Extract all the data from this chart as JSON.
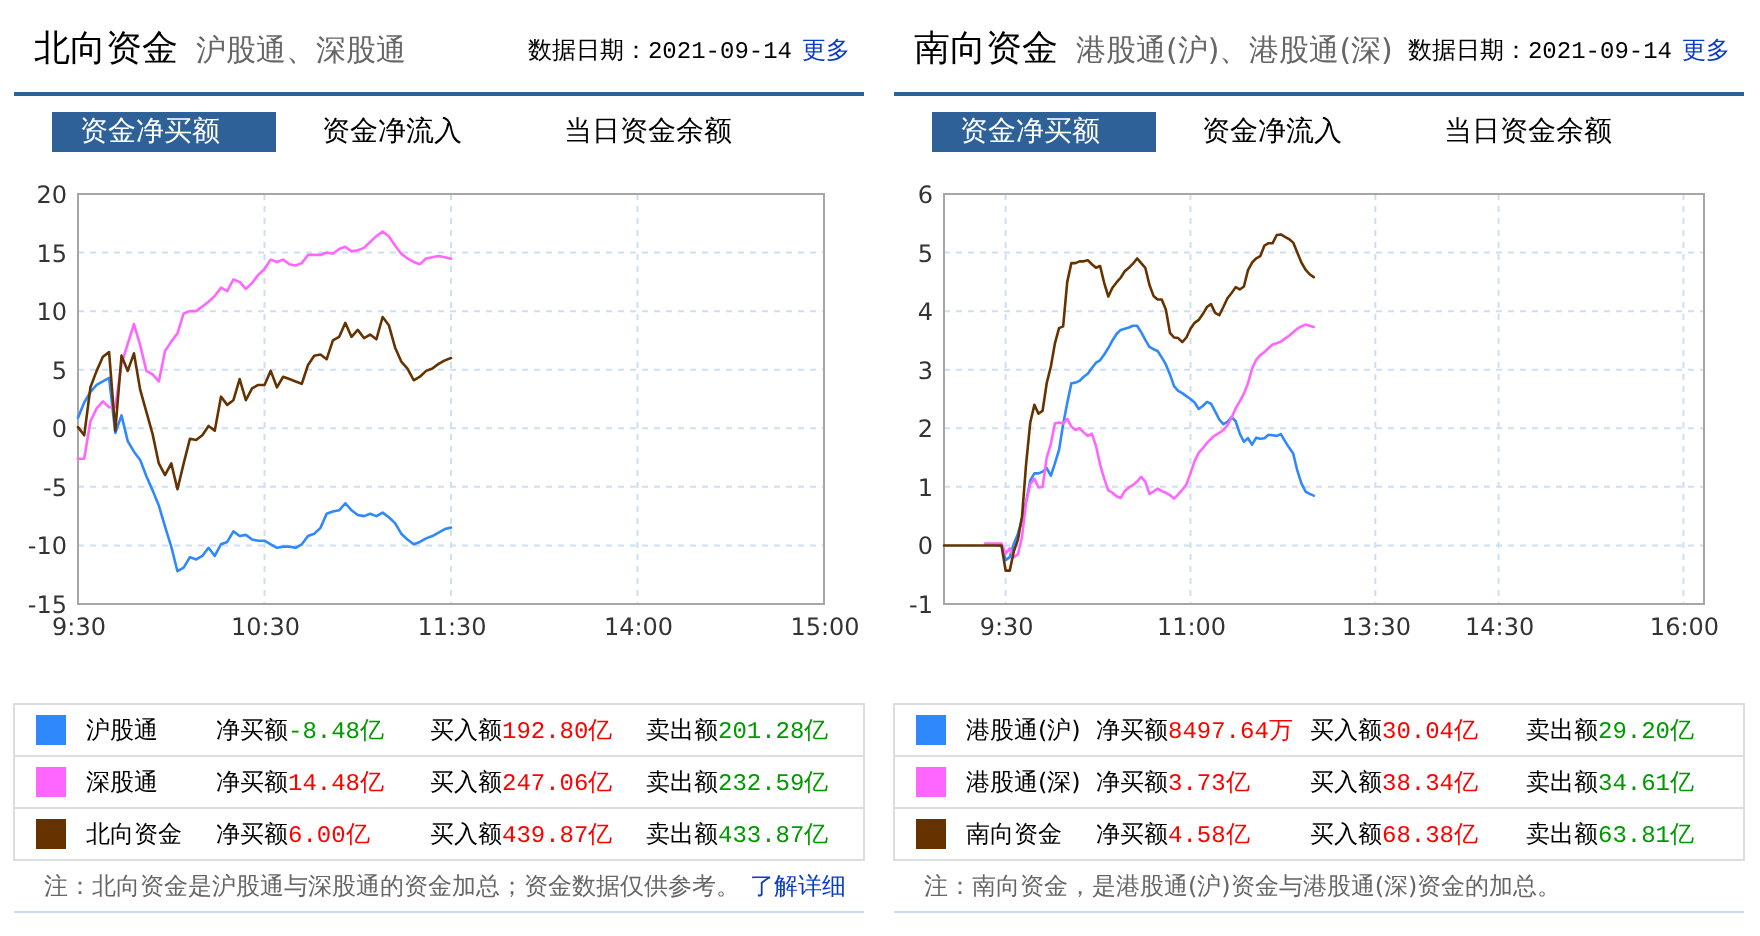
{
  "chart_data": [
    {
      "type": "line",
      "title": "北向资金",
      "subtitle": "沪股通、深股通",
      "categories": [
        "9:30",
        null,
        null,
        null,
        null,
        null,
        null,
        null,
        null,
        null,
        null,
        null,
        null,
        null,
        null,
        null,
        null,
        null,
        null,
        null,
        null,
        null,
        null,
        null,
        null,
        null,
        null,
        null,
        null,
        null,
        "10:30",
        null,
        null,
        null,
        null,
        null,
        null,
        null,
        null,
        null,
        null,
        null,
        null,
        null,
        null,
        null,
        null,
        null,
        null,
        null,
        null,
        null,
        null,
        null,
        null,
        null,
        null,
        null,
        null,
        null,
        "11:30",
        null,
        null,
        null,
        null,
        null,
        null,
        null,
        null,
        null,
        null,
        null,
        null,
        null,
        null,
        null,
        null,
        null,
        null,
        null,
        null,
        null,
        null,
        null,
        null,
        null,
        null,
        null,
        null,
        null,
        "14:00",
        null,
        null,
        null,
        null,
        null,
        null,
        null,
        null,
        null,
        null,
        null,
        null,
        null,
        null,
        null,
        null,
        null,
        null,
        null,
        null,
        null,
        null,
        null,
        null,
        null,
        null,
        null,
        null,
        null,
        "15:00"
      ],
      "ylim": [
        -15,
        20
      ],
      "yticks": [
        -15,
        -10,
        -5,
        0,
        5,
        10,
        15,
        20
      ],
      "grid": true,
      "legend": "bottom",
      "series": [
        {
          "name": "沪股通",
          "color": "#2f89fc",
          "values": [
            0.9,
            2.2,
            3.1,
            3.7,
            4.0,
            4.3,
            -0.4,
            1.1,
            -1.1,
            -2.0,
            -2.7,
            -4.1,
            -5.3,
            -6.6,
            -8.4,
            -10.1,
            -12.2,
            -11.9,
            -11.0,
            -11.2,
            -10.9,
            -10.2,
            -10.9,
            -9.9,
            -9.7,
            -8.8,
            -9.2,
            -9.1,
            -9.5,
            -9.6,
            -9.6,
            -9.9,
            -10.2,
            -10.1,
            -10.1,
            -10.2,
            -9.9,
            -9.2,
            -9.0,
            -8.5,
            -7.3,
            -7.1,
            -7.0,
            -6.4,
            -7.0,
            -7.4,
            -7.5,
            -7.3,
            -7.5,
            -7.2,
            -7.6,
            -8.1,
            -9.0,
            -9.5,
            -9.9,
            -9.7,
            -9.4,
            -9.2,
            -8.9,
            -8.6,
            -8.48,
            null,
            null,
            null,
            null,
            null,
            null,
            null,
            null,
            null,
            null,
            null,
            null,
            null,
            null,
            null,
            null,
            null,
            null,
            null,
            null,
            null,
            null,
            null,
            null,
            null,
            null,
            null,
            null,
            null,
            null,
            null,
            null,
            null,
            null,
            null,
            null,
            null,
            null,
            null,
            null,
            null,
            null,
            null,
            null,
            null,
            null,
            null,
            null,
            null,
            null,
            null,
            null,
            null,
            null,
            null,
            null,
            null,
            null,
            null,
            null
          ]
        },
        {
          "name": "深股通",
          "color": "#ff66ff",
          "values": [
            -2.6,
            -2.6,
            0.6,
            1.7,
            2.3,
            1.8,
            1.8,
            5.5,
            7.2,
            8.9,
            7.1,
            4.9,
            4.6,
            4.0,
            6.6,
            7.4,
            8.1,
            9.8,
            10.0,
            10.0,
            10.4,
            10.8,
            11.3,
            12.0,
            11.7,
            12.7,
            12.5,
            11.9,
            12.4,
            13.1,
            13.6,
            14.4,
            14.2,
            14.4,
            14.0,
            13.9,
            14.1,
            14.8,
            14.8,
            14.8,
            15.0,
            14.9,
            15.3,
            15.5,
            15.1,
            15.2,
            15.4,
            15.9,
            16.4,
            16.8,
            16.4,
            15.6,
            14.9,
            14.5,
            14.2,
            14.0,
            14.5,
            14.6,
            14.7,
            14.6,
            14.48,
            null,
            null,
            null,
            null,
            null,
            null,
            null,
            null,
            null,
            null,
            null,
            null,
            null,
            null,
            null,
            null,
            null,
            null,
            null,
            null,
            null,
            null,
            null,
            null,
            null,
            null,
            null,
            null,
            null,
            null,
            null,
            null,
            null,
            null,
            null,
            null,
            null,
            null,
            null,
            null,
            null,
            null,
            null,
            null,
            null,
            null,
            null,
            null,
            null,
            null,
            null,
            null,
            null,
            null,
            null,
            null,
            null,
            null,
            null,
            null
          ]
        },
        {
          "name": "北向资金",
          "color": "#663300",
          "values": [
            0.1,
            -0.6,
            3.5,
            4.9,
            6.1,
            6.5,
            -0.2,
            6.2,
            4.9,
            6.4,
            3.3,
            1.4,
            -0.5,
            -3.0,
            -4.0,
            -3.0,
            -5.2,
            -3.0,
            -0.9,
            -1.0,
            -0.6,
            0.2,
            -0.2,
            2.7,
            2.0,
            2.4,
            4.2,
            2.4,
            3.4,
            3.7,
            3.7,
            4.9,
            3.5,
            4.4,
            4.2,
            4.0,
            3.8,
            5.4,
            6.2,
            6.3,
            5.9,
            7.5,
            7.8,
            9.0,
            7.8,
            8.4,
            7.7,
            8.0,
            7.6,
            9.5,
            8.8,
            6.9,
            5.7,
            5.1,
            4.1,
            4.4,
            4.9,
            5.1,
            5.5,
            5.8,
            6.0,
            null,
            null,
            null,
            null,
            null,
            null,
            null,
            null,
            null,
            null,
            null,
            null,
            null,
            null,
            null,
            null,
            null,
            null,
            null,
            null,
            null,
            null,
            null,
            null,
            null,
            null,
            null,
            null,
            null,
            null,
            null,
            null,
            null,
            null,
            null,
            null,
            null,
            null,
            null,
            null,
            null,
            null,
            null,
            null,
            null,
            null,
            null,
            null,
            null,
            null,
            null,
            null,
            null,
            null,
            null,
            null,
            null,
            null,
            null,
            null
          ]
        }
      ],
      "annotations": [
        "数据日期：2021-09-14",
        "更多",
        "资金净买额",
        "资金净流入",
        "当日资金余额",
        "净买额",
        "-8.48亿",
        "买入额",
        "192.80亿",
        "卖出额",
        "201.28亿",
        "净买额",
        "14.48亿",
        "买入额",
        "247.06亿",
        "卖出额",
        "232.59亿",
        "净买额",
        "6.00亿",
        "买入额",
        "439.87亿",
        "卖出额",
        "433.87亿",
        "注：北向资金是沪股通与深股通的资金加总；资金数据仅供参考。",
        "了解详细"
      ]
    },
    {
      "type": "line",
      "title": "南向资金",
      "subtitle": "港股通(沪)、港股通(深)",
      "categories": [
        null,
        null,
        null,
        null,
        null,
        null,
        null,
        null,
        null,
        null,
        null,
        null,
        null,
        null,
        null,
        "9:30",
        null,
        null,
        null,
        null,
        null,
        null,
        null,
        null,
        null,
        null,
        null,
        null,
        null,
        null,
        null,
        null,
        null,
        null,
        null,
        null,
        null,
        null,
        null,
        null,
        null,
        null,
        null,
        null,
        null,
        null,
        null,
        null,
        null,
        null,
        null,
        null,
        null,
        null,
        null,
        null,
        null,
        null,
        null,
        null,
        "11:00",
        null,
        null,
        null,
        null,
        null,
        null,
        null,
        null,
        null,
        null,
        null,
        null,
        null,
        null,
        null,
        null,
        null,
        null,
        null,
        null,
        null,
        null,
        null,
        null,
        null,
        null,
        null,
        null,
        null,
        null,
        null,
        null,
        null,
        null,
        null,
        null,
        null,
        null,
        null,
        null,
        null,
        null,
        null,
        null,
        "13:30",
        null,
        null,
        null,
        null,
        null,
        null,
        null,
        null,
        null,
        null,
        null,
        null,
        null,
        null,
        null,
        null,
        null,
        null,
        null,
        null,
        null,
        null,
        null,
        null,
        null,
        null,
        null,
        null,
        null,
        "14:30",
        null,
        null,
        null,
        null,
        null,
        null,
        null,
        null,
        null,
        null,
        null,
        null,
        null,
        null,
        null,
        null,
        null,
        null,
        null,
        null,
        null,
        null,
        null,
        null,
        null,
        null,
        null,
        null,
        null,
        null,
        null,
        null,
        null,
        null,
        null,
        null,
        null,
        null,
        null,
        null,
        null,
        null,
        null,
        null,
        "16:00",
        null,
        null,
        null,
        null,
        null
      ],
      "ylim": [
        -1,
        6
      ],
      "yticks": [
        -1,
        0,
        1,
        2,
        3,
        4,
        5,
        6
      ],
      "grid": true,
      "legend": "bottom",
      "series": [
        {
          "name": "港股通(沪)",
          "color": "#2f89fc",
          "values": [
            null,
            null,
            null,
            null,
            null,
            null,
            null,
            null,
            null,
            null,
            null,
            null,
            null,
            0,
            0,
            -0.25,
            -0.2,
            0.03,
            0.2,
            0.45,
            0.75,
            1.11,
            1.23,
            1.23,
            1.26,
            1.32,
            1.19,
            1.4,
            1.63,
            2.07,
            2.43,
            2.77,
            2.78,
            2.81,
            2.88,
            2.93,
            3.03,
            3.12,
            3.16,
            3.26,
            3.37,
            3.5,
            3.61,
            3.68,
            3.7,
            3.72,
            3.75,
            3.75,
            3.64,
            3.51,
            3.39,
            3.35,
            3.32,
            3.21,
            3.09,
            2.92,
            2.72,
            2.64,
            2.6,
            2.55,
            2.5,
            2.44,
            2.33,
            2.38,
            2.45,
            2.42,
            2.29,
            2.15,
            2.07,
            2.11,
            2.19,
            2.12,
            1.91,
            1.77,
            1.83,
            1.72,
            1.84,
            1.82,
            1.83,
            1.89,
            1.88,
            1.87,
            1.9,
            1.78,
            1.67,
            1.57,
            1.28,
            1.06,
            0.92,
            0.88,
            0.85,
            null,
            null,
            null,
            null,
            null,
            null,
            null,
            null,
            null,
            null,
            null,
            null,
            null,
            null,
            null,
            null,
            null,
            null,
            null,
            null,
            null,
            null,
            null,
            null,
            null,
            null,
            null,
            null,
            null,
            null,
            null,
            null,
            null,
            null,
            null,
            null,
            null,
            null,
            null,
            null,
            null,
            null,
            null,
            null,
            null,
            null,
            null,
            null,
            null,
            null,
            null,
            null,
            null,
            null,
            null,
            null,
            null,
            null,
            null,
            null,
            null,
            null,
            null,
            null,
            null,
            null,
            null,
            null,
            null,
            null,
            null,
            null,
            null,
            null,
            null,
            null,
            null,
            null,
            null,
            null,
            null,
            null,
            null,
            null,
            null,
            null,
            null,
            null,
            null,
            null,
            null,
            null,
            null,
            null,
            null
          ]
        },
        {
          "name": "港股通(深)",
          "color": "#ff66ff",
          "values": [
            null,
            null,
            null,
            null,
            null,
            null,
            null,
            null,
            null,
            null,
            0.03,
            0.03,
            0.03,
            0.03,
            0.03,
            -0.14,
            -0.05,
            -0.2,
            -0.15,
            0.15,
            0.75,
            1.05,
            1.14,
            0.99,
            1.0,
            1.5,
            1.73,
            2.08,
            2.1,
            2.08,
            2.16,
            2.03,
            1.97,
            2.0,
            1.93,
            1.87,
            1.91,
            1.7,
            1.38,
            1.14,
            0.94,
            0.9,
            0.84,
            0.81,
            0.93,
            0.99,
            1.03,
            1.09,
            1.17,
            1.09,
            0.88,
            0.92,
            0.97,
            0.93,
            0.9,
            0.86,
            0.8,
            0.87,
            0.95,
            1.04,
            1.23,
            1.44,
            1.58,
            1.66,
            1.75,
            1.82,
            1.88,
            1.92,
            1.97,
            2.05,
            2.18,
            2.34,
            2.46,
            2.59,
            2.77,
            3.02,
            3.17,
            3.25,
            3.3,
            3.37,
            3.43,
            3.45,
            3.48,
            3.53,
            3.58,
            3.64,
            3.7,
            3.74,
            3.77,
            3.75,
            3.73,
            null,
            null,
            null,
            null,
            null,
            null,
            null,
            null,
            null,
            null,
            null,
            null,
            null,
            null,
            null,
            null,
            null,
            null,
            null,
            null,
            null,
            null,
            null,
            null,
            null,
            null,
            null,
            null,
            null,
            null,
            null,
            null,
            null,
            null,
            null,
            null,
            null,
            null,
            null,
            null,
            null,
            null,
            null,
            null,
            null,
            null,
            null,
            null,
            null,
            null,
            null,
            null,
            null,
            null,
            null,
            null,
            null,
            null,
            null,
            null,
            null,
            null,
            null,
            null,
            null,
            null,
            null,
            null,
            null,
            null,
            null,
            null,
            null,
            null,
            null,
            null,
            null,
            null,
            null,
            null,
            null,
            null,
            null,
            null,
            null,
            null,
            null,
            null,
            null,
            null,
            null,
            null,
            null,
            null,
            null
          ]
        },
        {
          "name": "南向资金",
          "color": "#663300",
          "values": [
            0,
            0,
            0,
            0,
            0,
            0,
            0,
            0,
            0,
            0,
            0,
            0,
            0,
            0,
            0,
            -0.43,
            -0.43,
            -0.1,
            0.1,
            0.5,
            1.4,
            2.1,
            2.4,
            2.25,
            2.3,
            2.77,
            3.05,
            3.45,
            3.71,
            3.74,
            4.5,
            4.82,
            4.82,
            4.85,
            4.85,
            4.87,
            4.8,
            4.74,
            4.77,
            4.48,
            4.25,
            4.4,
            4.49,
            4.57,
            4.68,
            4.74,
            4.81,
            4.9,
            4.82,
            4.74,
            4.45,
            4.26,
            4.2,
            4.2,
            4.03,
            3.63,
            3.55,
            3.54,
            3.47,
            3.55,
            3.7,
            3.8,
            3.85,
            3.95,
            4.07,
            4.12,
            3.97,
            3.93,
            4.07,
            4.22,
            4.31,
            4.41,
            4.37,
            4.42,
            4.7,
            4.83,
            4.9,
            4.94,
            5.12,
            5.16,
            5.16,
            5.3,
            5.31,
            5.27,
            5.23,
            5.17,
            5.0,
            4.83,
            4.71,
            4.63,
            4.58,
            null,
            null,
            null,
            null,
            null,
            null,
            null,
            null,
            null,
            null,
            null,
            null,
            null,
            null,
            null,
            null,
            null,
            null,
            null,
            null,
            null,
            null,
            null,
            null,
            null,
            null,
            null,
            null,
            null,
            null,
            null,
            null,
            null,
            null,
            null,
            null,
            null,
            null,
            null,
            null,
            null,
            null,
            null,
            null,
            null,
            null,
            null,
            null,
            null,
            null,
            null,
            null,
            null,
            null,
            null,
            null,
            null,
            null,
            null,
            null,
            null,
            null,
            null,
            null,
            null,
            null,
            null,
            null,
            null,
            null,
            null,
            null,
            null,
            null,
            null,
            null,
            null,
            null,
            null,
            null,
            null,
            null,
            null,
            null,
            null,
            null,
            null,
            null,
            null,
            null,
            null,
            null,
            null,
            null,
            null
          ]
        }
      ],
      "annotations": [
        "数据日期：2021-09-14",
        "更多",
        "资金净买额",
        "资金净流入",
        "当日资金余额",
        "净买额",
        "8497.64万",
        "买入额",
        "30.04亿",
        "卖出额",
        "29.20亿",
        "净买额",
        "3.73亿",
        "买入额",
        "38.34亿",
        "卖出额",
        "34.61亿",
        "净买额",
        "4.58亿",
        "买入额",
        "68.38亿",
        "卖出额",
        "63.81亿",
        "注：南向资金，是港股通(沪)资金与港股通(深)资金的加总。"
      ]
    }
  ]
}
